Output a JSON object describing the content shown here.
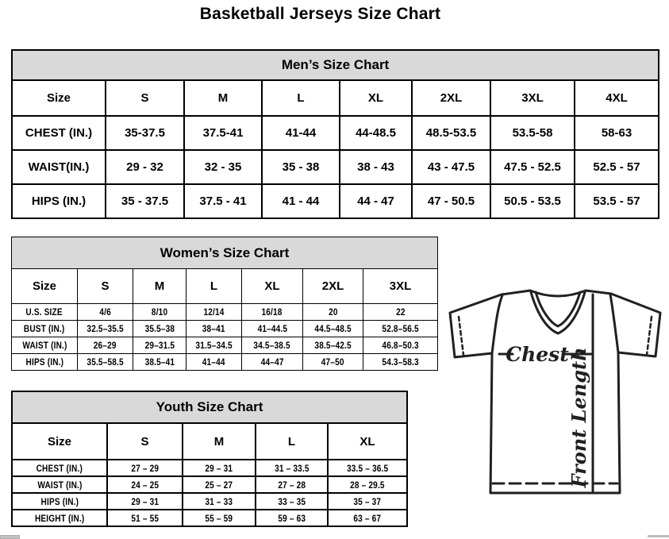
{
  "page": {
    "title": "Basketball Jerseys Size Chart"
  },
  "tables": {
    "men": {
      "title": "Men’s Size Chart",
      "columns": [
        "Size",
        "S",
        "M",
        "L",
        "XL",
        "2XL",
        "3XL",
        "4XL"
      ],
      "rows": [
        {
          "label": "CHEST (IN.)",
          "values": [
            "35-37.5",
            "37.5-41",
            "41-44",
            "44-48.5",
            "48.5-53.5",
            "53.5-58",
            "58-63"
          ]
        },
        {
          "label": "WAIST(IN.)",
          "values": [
            "29 - 32",
            "32 - 35",
            "35 - 38",
            "38 - 43",
            "43 - 47.5",
            "47.5 - 52.5",
            "52.5 - 57"
          ]
        },
        {
          "label": "HIPS (IN.)",
          "values": [
            "35 - 37.5",
            "37.5 - 41",
            "41 - 44",
            "44 - 47",
            "47 - 50.5",
            "50.5 - 53.5",
            "53.5 - 57"
          ]
        }
      ]
    },
    "women": {
      "title": "Women’s Size Chart",
      "columns": [
        "Size",
        "S",
        "M",
        "L",
        "XL",
        "2XL",
        "3XL"
      ],
      "rows": [
        {
          "label": "U.S. SIZE",
          "values": [
            "4/6",
            "8/10",
            "12/14",
            "16/18",
            "20",
            "22"
          ]
        },
        {
          "label": "BUST (IN.)",
          "values": [
            "32.5–35.5",
            "35.5–38",
            "38–41",
            "41–44.5",
            "44.5–48.5",
            "52.8–56.5"
          ]
        },
        {
          "label": "WAIST (IN.)",
          "values": [
            "26–29",
            "29–31.5",
            "31.5–34.5",
            "34.5–38.5",
            "38.5–42.5",
            "46.8–50.3"
          ]
        },
        {
          "label": "HIPS (IN.)",
          "values": [
            "35.5–58.5",
            "38.5–41",
            "41–44",
            "44–47",
            "47–50",
            "54.3–58.3"
          ]
        }
      ]
    },
    "youth": {
      "title": "Youth Size Chart",
      "columns": [
        "Size",
        "S",
        "M",
        "L",
        "XL"
      ],
      "rows": [
        {
          "label": "CHEST (IN.)",
          "values": [
            "27 – 29",
            "29 – 31",
            "31 – 33.5",
            "33.5 – 36.5"
          ]
        },
        {
          "label": "WAIST (IN.)",
          "values": [
            "24 – 25",
            "25 – 27",
            "27 – 28",
            "28 – 29.5"
          ]
        },
        {
          "label": "HIPS (IN.)",
          "values": [
            "29 – 31",
            "31 – 33",
            "33 – 35",
            "35 – 37"
          ]
        },
        {
          "label": "HEIGHT (IN.)",
          "values": [
            "51 – 55",
            "55 – 59",
            "59 – 63",
            "63 – 67"
          ]
        }
      ]
    }
  },
  "diagram": {
    "chest_label": "Chest",
    "front_length_label": "Front Length"
  },
  "colors": {
    "table_header_bg": "#d9d9d9",
    "border": "#000000",
    "text": "#000000",
    "diagram_stroke": "#231f20"
  }
}
